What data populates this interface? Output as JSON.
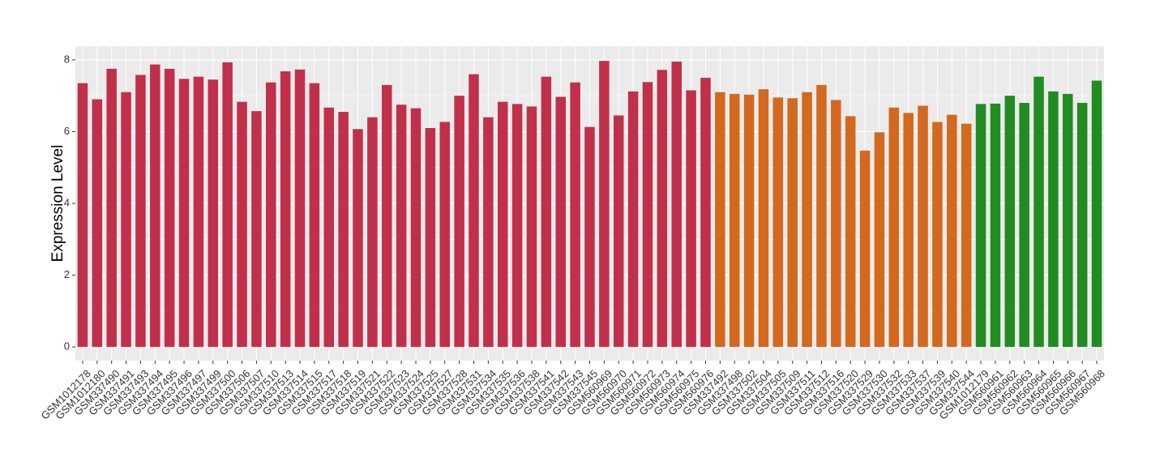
{
  "chart_data": {
    "type": "bar",
    "y_label": "Expression Level",
    "categories": [
      "GSM1012178",
      "GSM1012180",
      "GSM337490",
      "GSM337491",
      "GSM337493",
      "GSM337494",
      "GSM337495",
      "GSM337496",
      "GSM337497",
      "GSM337499",
      "GSM337500",
      "GSM337506",
      "GSM337507",
      "GSM337510",
      "GSM337513",
      "GSM337514",
      "GSM337515",
      "GSM337517",
      "GSM337518",
      "GSM337519",
      "GSM337521",
      "GSM337522",
      "GSM337523",
      "GSM337524",
      "GSM337525",
      "GSM337527",
      "GSM337528",
      "GSM337531",
      "GSM337534",
      "GSM337535",
      "GSM337536",
      "GSM337538",
      "GSM337541",
      "GSM337542",
      "GSM337543",
      "GSM337545",
      "GSM560969",
      "GSM560970",
      "GSM560971",
      "GSM560972",
      "GSM560973",
      "GSM560974",
      "GSM560975",
      "GSM560976",
      "GSM337492",
      "GSM337498",
      "GSM337502",
      "GSM337504",
      "GSM337505",
      "GSM337509",
      "GSM337511",
      "GSM337512",
      "GSM337516",
      "GSM337520",
      "GSM337529",
      "GSM337530",
      "GSM337532",
      "GSM337533",
      "GSM337537",
      "GSM337539",
      "GSM337540",
      "GSM337544",
      "GSM1012179",
      "GSM560961",
      "GSM560962",
      "GSM560963",
      "GSM560964",
      "GSM560965",
      "GSM560966",
      "GSM560967",
      "GSM560968"
    ],
    "values": [
      7.35,
      6.9,
      7.75,
      7.1,
      7.58,
      7.87,
      7.75,
      7.47,
      7.53,
      7.45,
      7.93,
      6.83,
      6.57,
      7.37,
      7.68,
      7.73,
      7.35,
      6.67,
      6.55,
      6.07,
      6.4,
      7.3,
      6.75,
      6.65,
      6.1,
      6.27,
      7.0,
      7.6,
      6.4,
      6.83,
      6.77,
      6.7,
      7.53,
      6.97,
      7.37,
      6.13,
      7.97,
      6.45,
      7.12,
      7.38,
      7.72,
      7.95,
      7.15,
      7.5,
      7.1,
      7.05,
      7.03,
      7.18,
      6.95,
      6.93,
      7.1,
      7.3,
      6.88,
      6.43,
      5.47,
      5.98,
      6.67,
      6.52,
      6.72,
      6.27,
      6.47,
      6.22,
      6.77,
      6.78,
      7.0,
      6.8,
      7.53,
      7.12,
      7.05,
      6.8,
      7.42
    ],
    "colors": [
      "#c0304a",
      "#c0304a",
      "#c0304a",
      "#c0304a",
      "#c0304a",
      "#c0304a",
      "#c0304a",
      "#c0304a",
      "#c0304a",
      "#c0304a",
      "#c0304a",
      "#c0304a",
      "#c0304a",
      "#c0304a",
      "#c0304a",
      "#c0304a",
      "#c0304a",
      "#c0304a",
      "#c0304a",
      "#c0304a",
      "#c0304a",
      "#c0304a",
      "#c0304a",
      "#c0304a",
      "#c0304a",
      "#c0304a",
      "#c0304a",
      "#c0304a",
      "#c0304a",
      "#c0304a",
      "#c0304a",
      "#c0304a",
      "#c0304a",
      "#c0304a",
      "#c0304a",
      "#c0304a",
      "#c0304a",
      "#c0304a",
      "#c0304a",
      "#c0304a",
      "#c0304a",
      "#c0304a",
      "#c0304a",
      "#c0304a",
      "#d2691e",
      "#d2691e",
      "#d2691e",
      "#d2691e",
      "#d2691e",
      "#d2691e",
      "#d2691e",
      "#d2691e",
      "#d2691e",
      "#d2691e",
      "#d2691e",
      "#d2691e",
      "#d2691e",
      "#d2691e",
      "#d2691e",
      "#d2691e",
      "#d2691e",
      "#d2691e",
      "#228b22",
      "#228b22",
      "#228b22",
      "#228b22",
      "#228b22",
      "#228b22",
      "#228b22",
      "#228b22",
      "#228b22"
    ],
    "ylim": [
      -0.38,
      8.38
    ],
    "yticks": [
      0,
      2,
      4,
      6,
      8
    ],
    "grid": true
  }
}
